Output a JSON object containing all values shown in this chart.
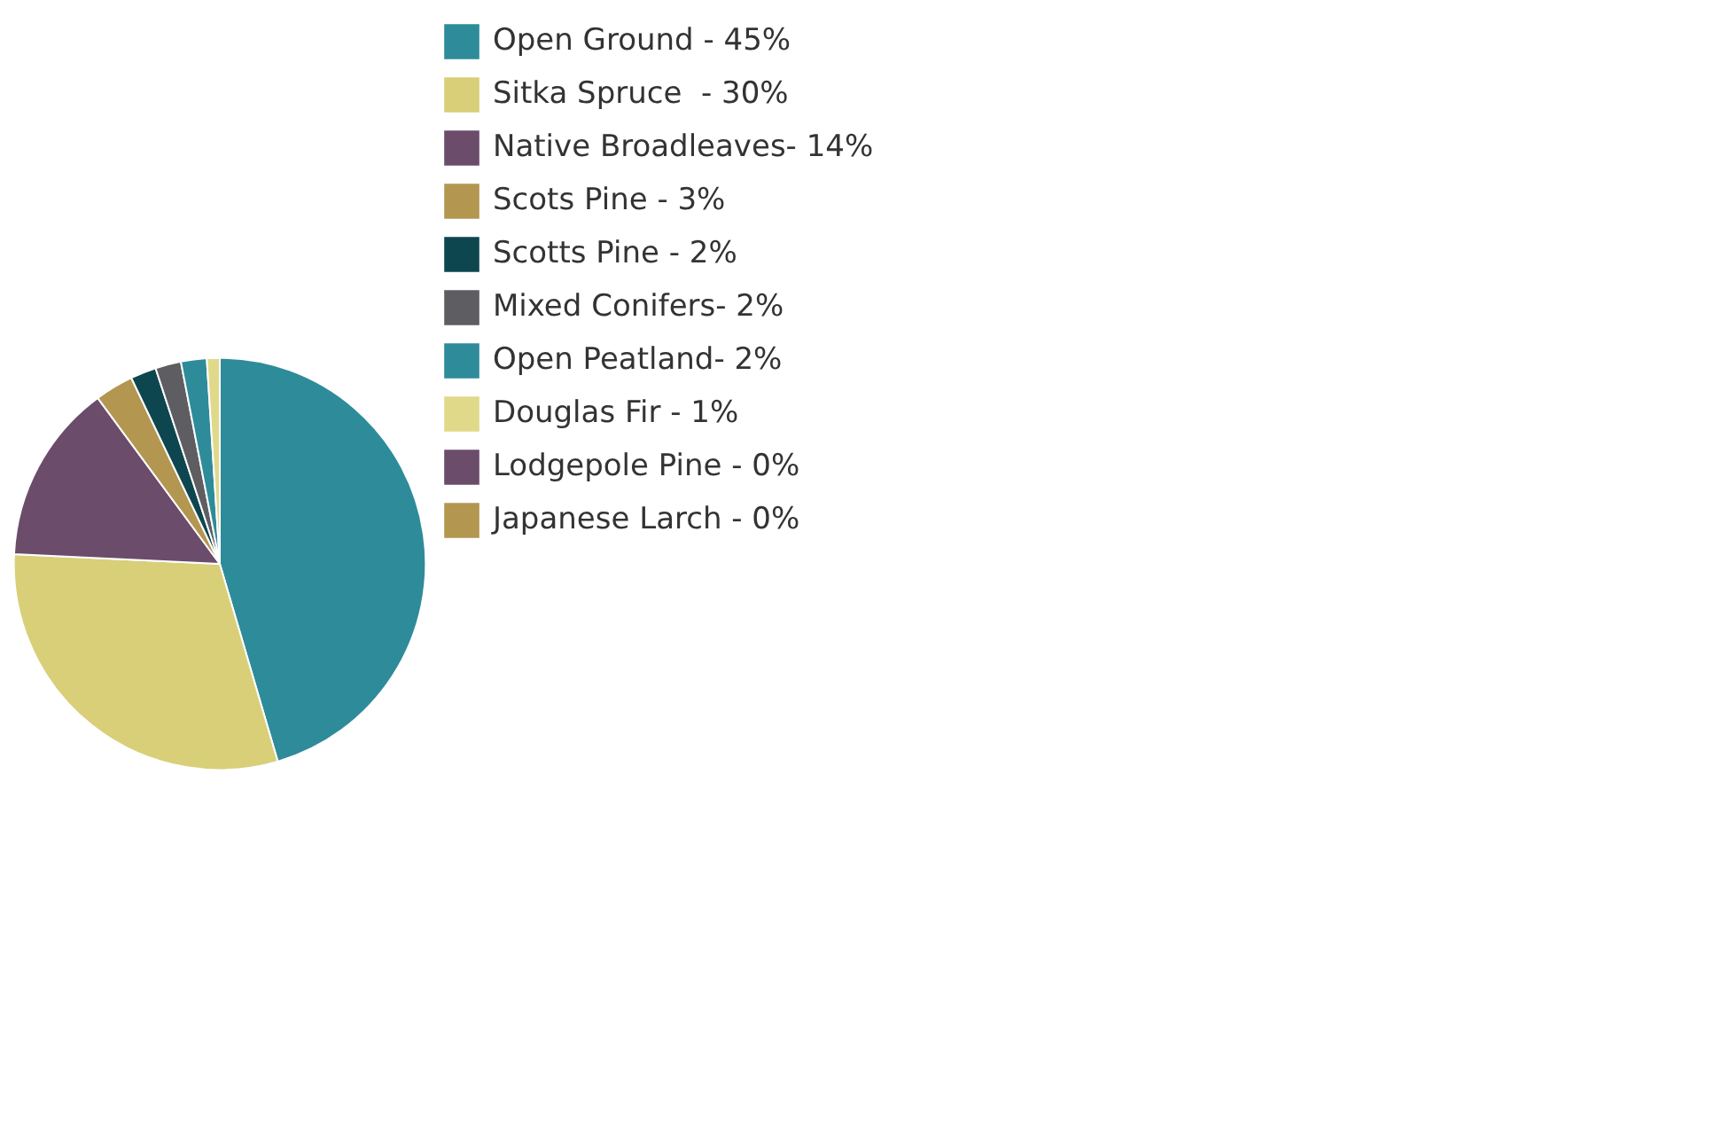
{
  "chart_data": {
    "type": "pie",
    "categories": [
      "Open Ground - 45%",
      "Sitka Spruce  - 30%",
      "Native Broadleaves- 14%",
      "Scots Pine - 3%",
      "Scotts Pine - 2%",
      "Mixed Conifers- 2%",
      "Open Peatland- 2%",
      "Douglas Fir - 1%",
      "Lodgepole Pine - 0%",
      "Japanese Larch - 0%"
    ],
    "values": [
      45,
      30,
      14,
      3,
      2,
      2,
      2,
      1,
      0,
      0
    ],
    "colors": [
      "#2e8b9a",
      "#d8cf78",
      "#6b4c6b",
      "#b39650",
      "#0e4650",
      "#5e5e62",
      "#2e8b9a",
      "#e0d98a",
      "#6b4c6b",
      "#b39650"
    ],
    "legend": "right"
  }
}
